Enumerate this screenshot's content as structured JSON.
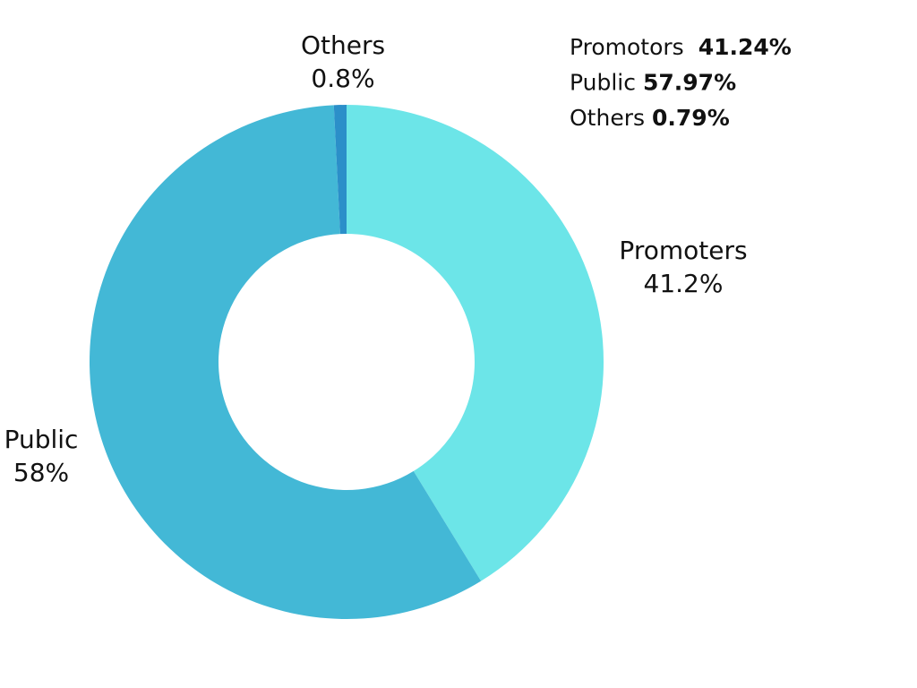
{
  "chart_data": {
    "type": "pie",
    "donut": true,
    "categories": [
      "Promoters",
      "Public",
      "Others"
    ],
    "values": [
      41.24,
      57.97,
      0.79
    ],
    "value_labels": [
      "41.2%",
      "58%",
      "0.8%"
    ],
    "colors": [
      "#6ce5e8",
      "#43b8d6",
      "#2b8fc9"
    ],
    "annotations": [
      {
        "name": "Promotors",
        "text": "41.24%"
      },
      {
        "name": "Public",
        "text": "57.97%"
      },
      {
        "name": "Others",
        "text": "0.79%"
      }
    ]
  }
}
